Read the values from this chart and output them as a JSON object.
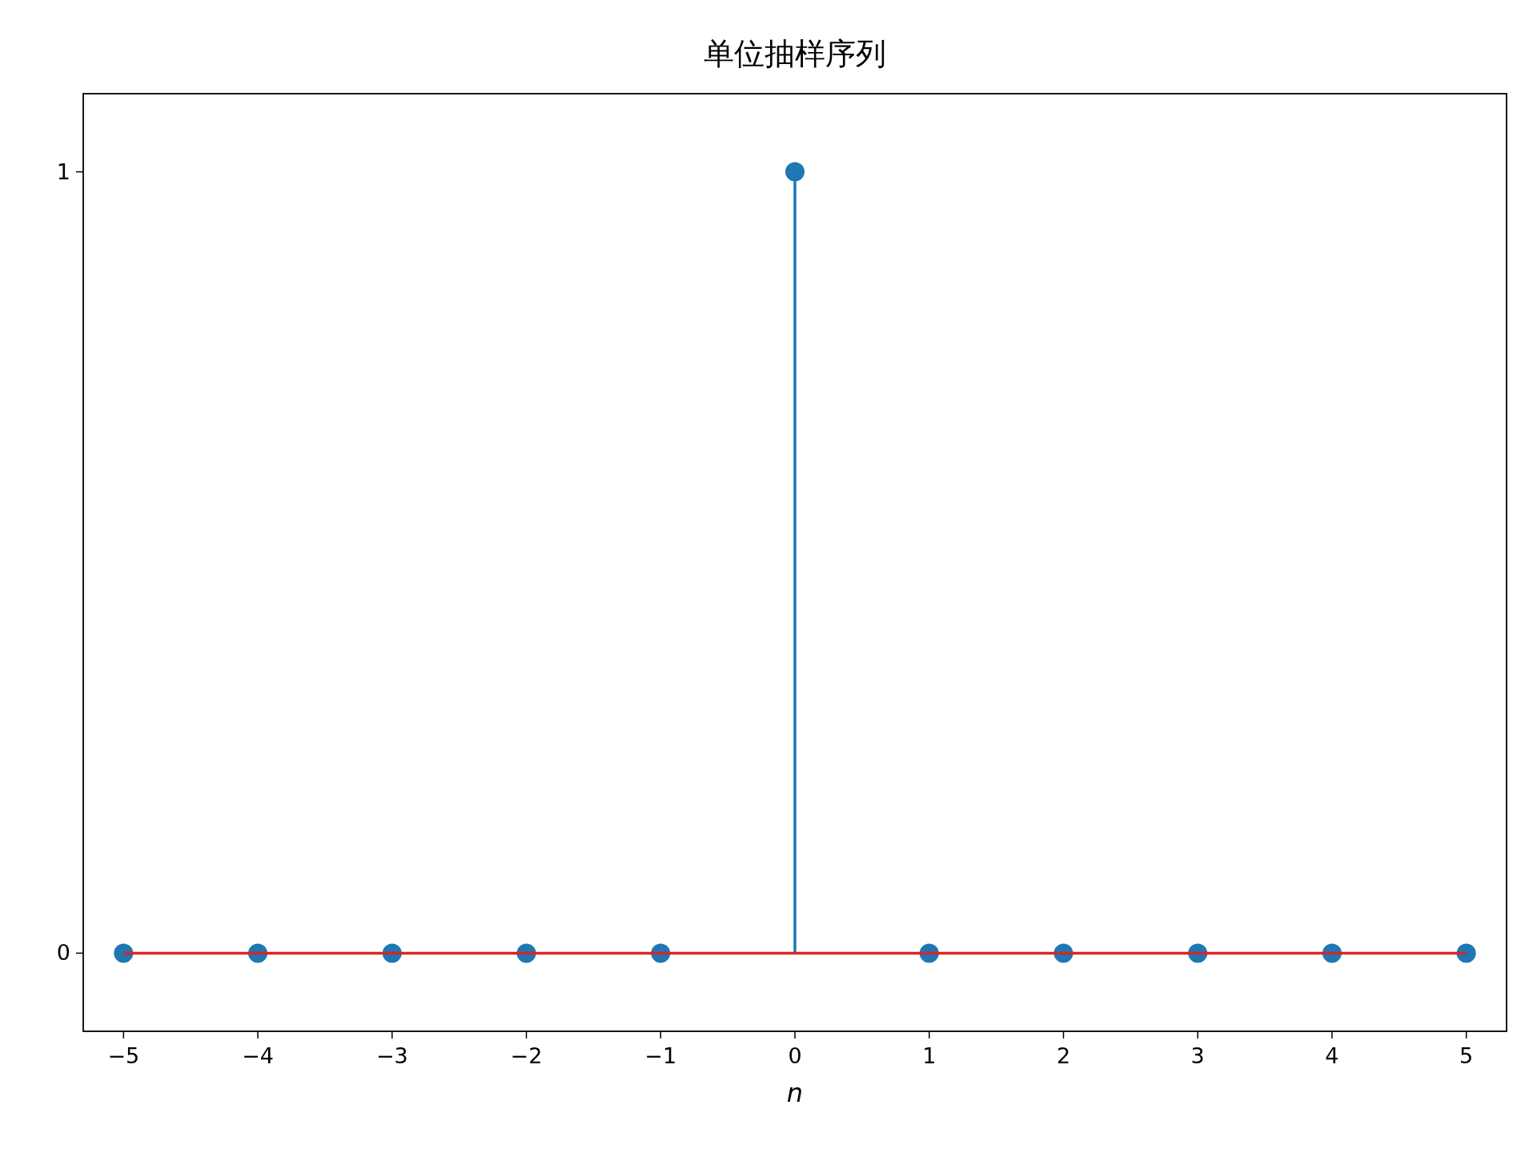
{
  "chart_data": {
    "type": "lollipop",
    "title": "单位抽样序列",
    "xlabel": "n",
    "x": [
      -5,
      -4,
      -3,
      -2,
      -1,
      0,
      1,
      2,
      3,
      4,
      5
    ],
    "series": [
      {
        "color": "#1f77b4",
        "values": [
          0,
          0,
          0,
          0,
          0,
          1,
          0,
          0,
          0,
          0,
          0
        ]
      }
    ],
    "marker": "circle",
    "xlim": [
      -5.3,
      5.3
    ],
    "xticks": [
      {
        "value": -5,
        "label": "−5"
      },
      {
        "value": -4,
        "label": "−4"
      },
      {
        "value": -3,
        "label": "−3"
      },
      {
        "value": -2,
        "label": "−2"
      },
      {
        "value": -1,
        "label": "−1"
      },
      0,
      1,
      2,
      3,
      4,
      5
    ],
    "ylim": [
      -0.1,
      1.1
    ],
    "yticks": [
      0,
      1
    ],
    "ref_lines": [
      {
        "axis": "y",
        "value": 0,
        "color": "#d62728"
      }
    ],
    "grid": false
  }
}
